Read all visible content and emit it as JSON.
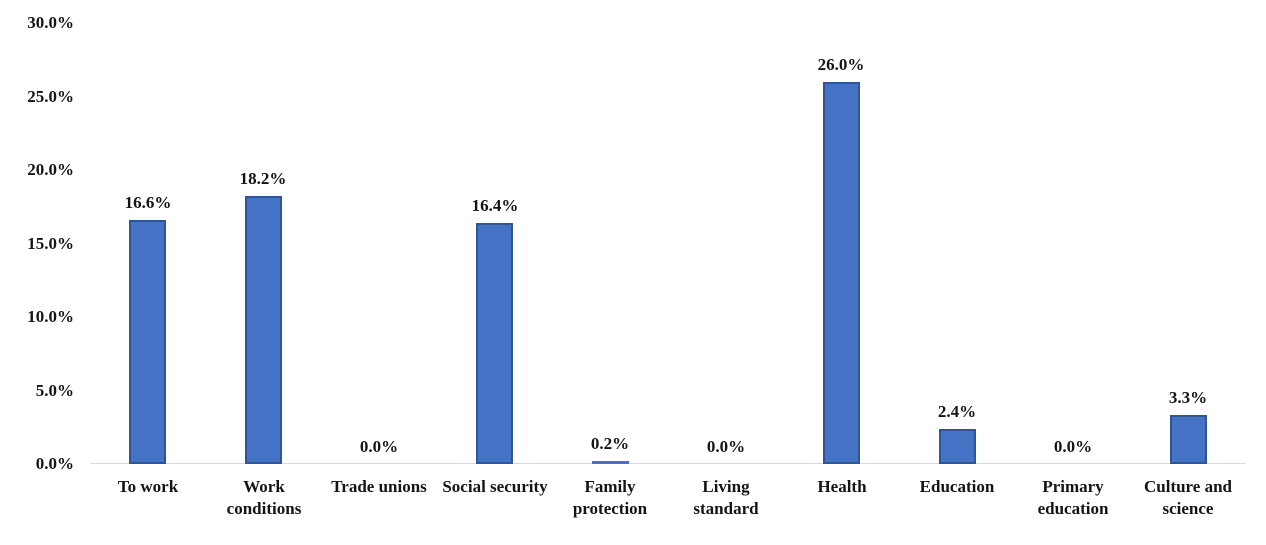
{
  "chart_data": {
    "type": "bar",
    "title": "",
    "xlabel": "",
    "ylabel": "",
    "categories": [
      "To work",
      "Work conditions",
      "Trade unions",
      "Social security",
      "Family protection",
      "Living standard",
      "Health",
      "Education",
      "Primary education",
      "Culture and science"
    ],
    "values": [
      16.6,
      18.2,
      0.0,
      16.4,
      0.2,
      0.0,
      26.0,
      2.4,
      0.0,
      3.3
    ],
    "value_labels": [
      "16.6%",
      "18.2%",
      "0.0%",
      "16.4%",
      "0.2%",
      "0.0%",
      "26.0%",
      "2.4%",
      "0.0%",
      "3.3%"
    ],
    "ylim": [
      0,
      30
    ],
    "yticks": [
      0,
      5,
      10,
      15,
      20,
      25,
      30
    ],
    "ytick_labels": [
      "0.0%",
      "5.0%",
      "10.0%",
      "15.0%",
      "20.0%",
      "25.0%",
      "30.0%"
    ],
    "grid": false,
    "legend": null,
    "colors": {
      "bar_fill": "#4472C4",
      "bar_border": "#2F5597",
      "axis_line": "#D9D9D9",
      "text": "#141414",
      "background": "#FFFFFF"
    }
  }
}
